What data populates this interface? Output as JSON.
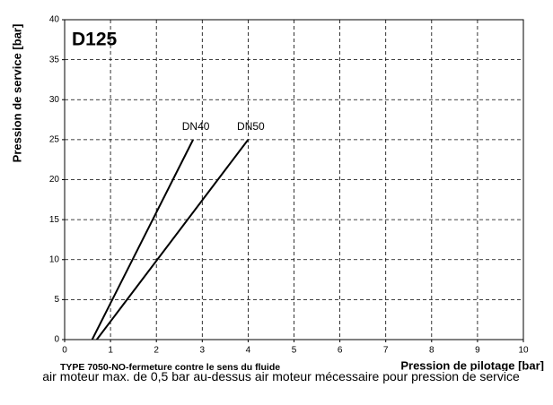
{
  "chart_data": {
    "type": "line",
    "title": "D125",
    "subtitle": "TYPE 7050-NO-fermeture  contre le sens du fluide",
    "note": "air moteur max. de 0,5 bar au-dessus air moteur mécessaire pour pression de service",
    "x_label": "Pression de pilotage [bar]",
    "y_label": "Pression de service [bar]",
    "xlim": [
      0,
      10
    ],
    "ylim": [
      0,
      40
    ],
    "xticks": [
      0,
      1,
      2,
      3,
      4,
      5,
      6,
      7,
      8,
      9,
      10
    ],
    "yticks": [
      0,
      5,
      10,
      15,
      20,
      25,
      30,
      35,
      40
    ],
    "grid": true,
    "series": [
      {
        "name": "DN40",
        "color": "#000000",
        "x": [
          0.6,
          2.8
        ],
        "values": [
          0,
          25
        ]
      },
      {
        "name": "DN50",
        "color": "#000000",
        "x": [
          0.7,
          4.0
        ],
        "values": [
          0,
          25
        ]
      }
    ]
  }
}
